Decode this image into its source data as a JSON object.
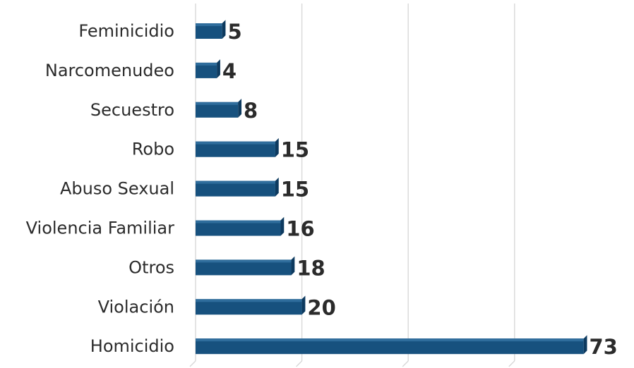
{
  "chart_data": {
    "type": "bar",
    "orientation": "horizontal",
    "categories": [
      "Feminicidio",
      "Narcomenudeo",
      "Secuestro",
      "Robo",
      "Abuso Sexual",
      "Violencia Familiar",
      "Otros",
      "Violación",
      "Homicidio"
    ],
    "values": [
      5,
      4,
      8,
      15,
      15,
      16,
      18,
      20,
      73
    ],
    "data_labels": [
      "5",
      "4",
      "8",
      "15",
      "15",
      "16",
      "18",
      "20",
      "73"
    ],
    "xlim": [
      0,
      75
    ],
    "grid": true,
    "legend": "none",
    "colors": {
      "bar_front": "#17517e",
      "bar_top": "#2f6d9c",
      "bar_side": "#0d3a5f",
      "text": "#2b2b2b",
      "grid": "#d6d6d6"
    }
  }
}
